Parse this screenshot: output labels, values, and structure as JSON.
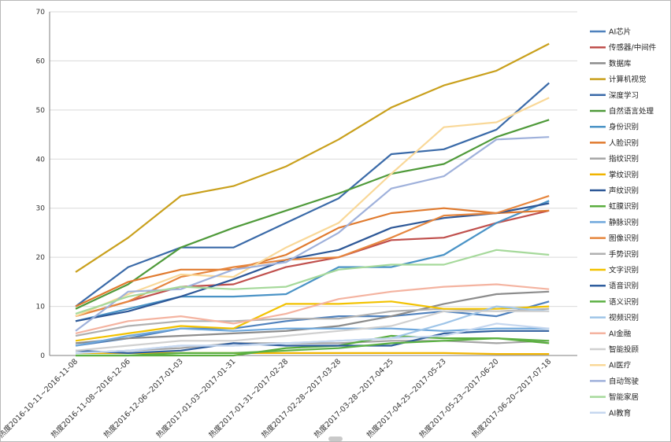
{
  "chart_data": {
    "type": "line",
    "title": "",
    "xlabel": "",
    "ylabel": "",
    "ylim": [
      0,
      70
    ],
    "yticks": [
      0,
      10,
      20,
      30,
      40,
      50,
      60,
      70
    ],
    "grid": "horizontal",
    "legend_position": "right",
    "categories": [
      "热度2016-10-11~2016-11-08",
      "热度2016-11-08~2016-12-06",
      "热度2016-12-06~2017-01-03",
      "热度2017-01-03~2017-01-31",
      "热度2017-01-31~2017-02-28",
      "热度2017-02-28~2017-03-28",
      "热度2017-03-28~2017-04-25",
      "热度2017-04-25~2017-05-23",
      "热度2017-05-23~2017-06-20",
      "热度2017-06-20~2017-07-18"
    ],
    "series": [
      {
        "name": "AI芯片",
        "color": "#4f81bd",
        "values": [
          2.0,
          3.5,
          5.5,
          5.5,
          7.0,
          8.0,
          8.0,
          9.0,
          8.0,
          11.0
        ]
      },
      {
        "name": "传感器/中间件",
        "color": "#c0504d",
        "values": [
          8.0,
          11.0,
          14.0,
          14.5,
          18.0,
          20.0,
          23.5,
          24.0,
          27.0,
          29.5
        ]
      },
      {
        "name": "数据库",
        "color": "#8c8c8c",
        "values": [
          2.5,
          3.5,
          4.0,
          4.5,
          5.0,
          6.0,
          8.0,
          10.5,
          12.5,
          13.0
        ]
      },
      {
        "name": "计算机视觉",
        "color": "#c9a01c",
        "values": [
          17.0,
          24.0,
          32.5,
          34.5,
          38.5,
          44.0,
          50.5,
          55.0,
          58.0,
          63.5
        ]
      },
      {
        "name": "深度学习",
        "color": "#3a6aa8",
        "values": [
          10.0,
          18.0,
          22.0,
          22.0,
          27.0,
          32.0,
          41.0,
          42.0,
          46.0,
          55.5
        ]
      },
      {
        "name": "自然语言处理",
        "color": "#4f9a3a",
        "values": [
          9.5,
          14.5,
          22.0,
          26.0,
          29.5,
          33.0,
          37.0,
          39.0,
          44.5,
          48.0
        ]
      },
      {
        "name": "身份识别",
        "color": "#4a93c6",
        "values": [
          7.0,
          9.5,
          12.0,
          12.0,
          12.5,
          18.0,
          18.0,
          20.5,
          27.0,
          31.5
        ]
      },
      {
        "name": "人脸识别",
        "color": "#e07a2e",
        "values": [
          10.0,
          15.0,
          17.5,
          17.5,
          20.5,
          26.0,
          29.0,
          30.0,
          29.0,
          29.5
        ]
      },
      {
        "name": "指纹识别",
        "color": "#a5a5a5",
        "values": [
          0.5,
          1.0,
          1.5,
          2.5,
          2.5,
          2.5,
          3.0,
          3.0,
          2.5,
          3.0
        ]
      },
      {
        "name": "掌纹识别",
        "color": "#f0b400",
        "values": [
          0.5,
          0.5,
          0.5,
          0.5,
          0.5,
          0.5,
          0.5,
          0.5,
          0.3,
          0.3
        ]
      },
      {
        "name": "声纹识别",
        "color": "#2e5897",
        "values": [
          7.0,
          9.0,
          12.0,
          15.5,
          19.5,
          21.5,
          26.0,
          28.0,
          29.0,
          31.0
        ]
      },
      {
        "name": "虹膜识别",
        "color": "#5aad3e",
        "values": [
          0.0,
          0.0,
          0.0,
          0.0,
          1.5,
          2.0,
          4.0,
          3.5,
          3.5,
          2.5
        ]
      },
      {
        "name": "静脉识别",
        "color": "#6fa8dc",
        "values": [
          2.0,
          4.0,
          5.5,
          5.0,
          5.5,
          5.5,
          5.5,
          5.0,
          5.5,
          5.5
        ]
      },
      {
        "name": "图像识别",
        "color": "#e6863e",
        "values": [
          8.0,
          11.0,
          16.0,
          18.0,
          19.5,
          20.0,
          24.0,
          28.5,
          29.0,
          32.5
        ]
      },
      {
        "name": "手势识别",
        "color": "#b0b0b0",
        "values": [
          4.0,
          6.0,
          7.0,
          7.0,
          7.5,
          7.5,
          9.0,
          9.5,
          9.0,
          9.5
        ]
      },
      {
        "name": "文字识别",
        "color": "#f2c200",
        "values": [
          3.0,
          4.5,
          6.0,
          5.5,
          10.5,
          10.5,
          11.0,
          9.5,
          9.5,
          10.0
        ]
      },
      {
        "name": "语音识别",
        "color": "#2f5e9e",
        "values": [
          1.0,
          0.5,
          1.0,
          2.5,
          2.0,
          2.0,
          2.0,
          4.5,
          5.0,
          5.0
        ]
      },
      {
        "name": "语义识别",
        "color": "#5cb144",
        "values": [
          0.0,
          0.0,
          0.5,
          0.5,
          1.0,
          1.5,
          2.5,
          3.0,
          3.5,
          3.0
        ]
      },
      {
        "name": "视频识别",
        "color": "#9fc5e8",
        "values": [
          0.5,
          1.0,
          2.0,
          2.0,
          2.5,
          3.0,
          3.5,
          6.5,
          10.0,
          9.0
        ]
      },
      {
        "name": "AI金融",
        "color": "#f4b3a0",
        "values": [
          4.5,
          7.0,
          8.0,
          6.5,
          8.5,
          11.5,
          13.0,
          14.0,
          14.5,
          13.5
        ]
      },
      {
        "name": "智能投顾",
        "color": "#d0d0d0",
        "values": [
          1.0,
          2.0,
          3.0,
          3.0,
          4.0,
          5.0,
          6.0,
          9.0,
          9.0,
          9.0
        ]
      },
      {
        "name": "AI医疗",
        "color": "#f9d898",
        "values": [
          8.0,
          12.5,
          16.5,
          16.0,
          22.0,
          27.0,
          37.0,
          46.5,
          47.5,
          52.5
        ]
      },
      {
        "name": "自动驾驶",
        "color": "#9fb1db",
        "values": [
          5.0,
          13.0,
          13.5,
          17.5,
          19.0,
          25.0,
          34.0,
          36.5,
          44.0,
          44.5
        ]
      },
      {
        "name": "智能家居",
        "color": "#a6d99b",
        "values": [
          8.5,
          12.0,
          14.0,
          13.5,
          14.0,
          17.5,
          18.5,
          18.5,
          21.5,
          20.5
        ]
      },
      {
        "name": "AI教育",
        "color": "#c6d7ef",
        "values": [
          0.5,
          1.0,
          2.0,
          2.0,
          2.5,
          3.0,
          3.5,
          4.0,
          6.5,
          5.5
        ]
      }
    ]
  }
}
